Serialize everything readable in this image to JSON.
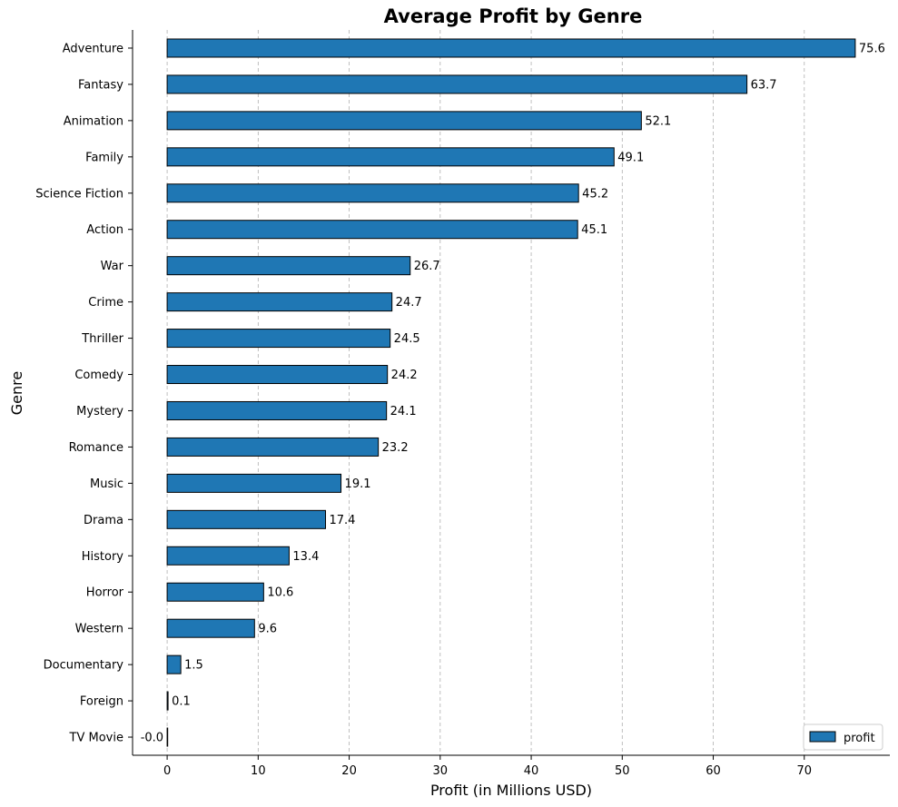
{
  "chart_data": {
    "type": "bar",
    "orientation": "horizontal",
    "title": "Average Profit by Genre",
    "xlabel": "Profit (in Millions USD)",
    "ylabel": "Genre",
    "xlim": [
      -3.8,
      79.4
    ],
    "xticks": [
      0,
      10,
      20,
      30,
      40,
      50,
      60,
      70
    ],
    "grid": "x-dashed",
    "legend": "bottom-right",
    "bar_color": "#1f77b4",
    "edge_color": "#000000",
    "categories": [
      "Adventure",
      "Fantasy",
      "Animation",
      "Family",
      "Science Fiction",
      "Action",
      "War",
      "Crime",
      "Thriller",
      "Comedy",
      "Mystery",
      "Romance",
      "Music",
      "Drama",
      "History",
      "Horror",
      "Western",
      "Documentary",
      "Foreign",
      "TV Movie"
    ],
    "series": [
      {
        "name": "profit",
        "values": [
          75.6,
          63.7,
          52.1,
          49.1,
          45.2,
          45.1,
          26.7,
          24.7,
          24.5,
          24.2,
          24.1,
          23.2,
          19.1,
          17.4,
          13.4,
          10.6,
          9.6,
          1.5,
          0.1,
          -0.0
        ],
        "labels": [
          "75.6",
          "63.7",
          "52.1",
          "49.1",
          "45.2",
          "45.1",
          "26.7",
          "24.7",
          "24.5",
          "24.2",
          "24.1",
          "23.2",
          "19.1",
          "17.4",
          "13.4",
          "10.6",
          "9.6",
          "1.5",
          "0.1",
          "-0.0"
        ]
      }
    ]
  }
}
